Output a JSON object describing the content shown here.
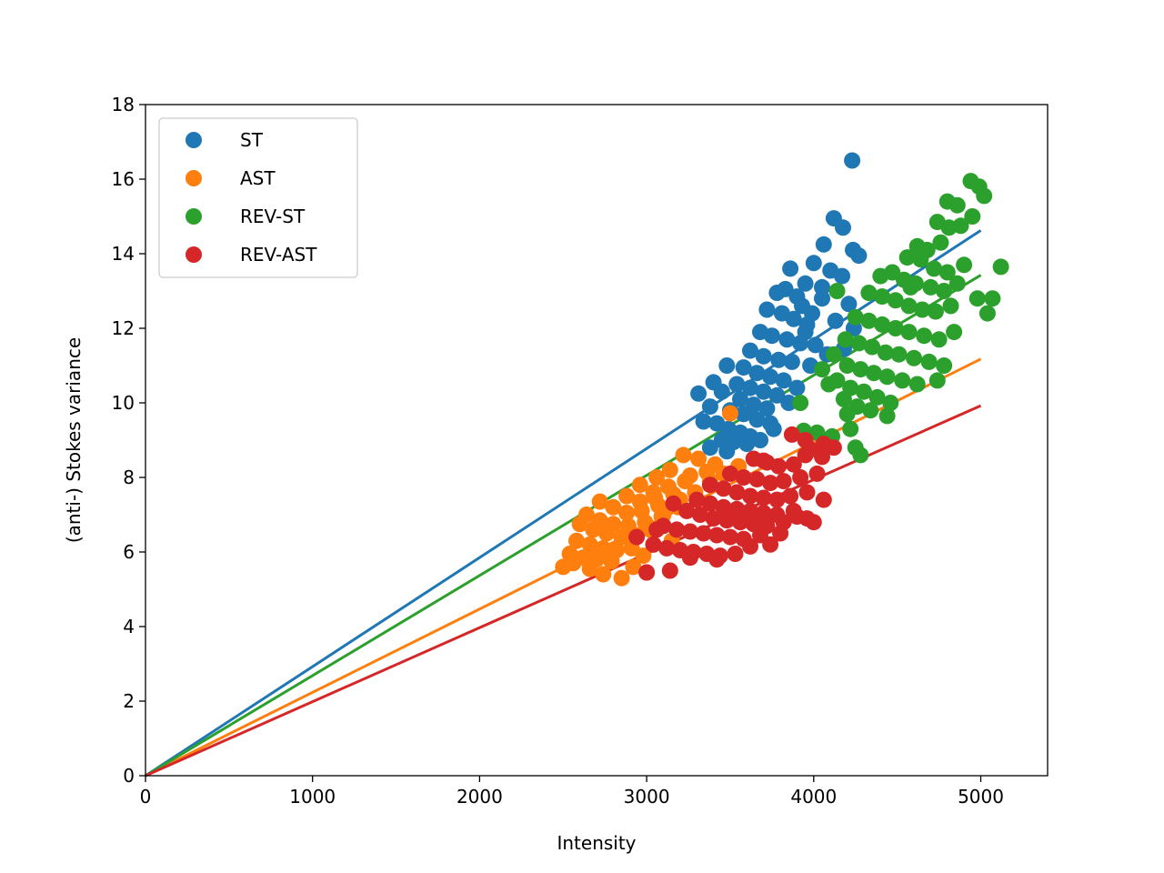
{
  "chart_data": {
    "type": "scatter",
    "title": "",
    "xlabel": "Intensity",
    "ylabel": "(anti-) Stokes variance",
    "xlim": [
      0,
      5400
    ],
    "ylim": [
      0,
      18
    ],
    "xticks": [
      0,
      1000,
      2000,
      3000,
      4000,
      5000
    ],
    "yticks": [
      0,
      2,
      4,
      6,
      8,
      10,
      12,
      14,
      16,
      18
    ],
    "grid": false,
    "legend_position": "top-left",
    "series": [
      {
        "name": "ST",
        "color": "#1f77b4",
        "fit_slope": 0.002925,
        "fit_x_range": [
          0,
          5000
        ],
        "points": [
          [
            4230,
            16.5
          ],
          [
            4120,
            14.95
          ],
          [
            4175,
            14.7
          ],
          [
            4235,
            14.1
          ],
          [
            4270,
            13.95
          ],
          [
            4060,
            14.25
          ],
          [
            3860,
            13.6
          ],
          [
            4000,
            13.75
          ],
          [
            4100,
            13.55
          ],
          [
            4170,
            13.4
          ],
          [
            3950,
            13.2
          ],
          [
            3780,
            12.95
          ],
          [
            3830,
            13.05
          ],
          [
            3900,
            12.85
          ],
          [
            4050,
            12.8
          ],
          [
            4210,
            12.65
          ],
          [
            3720,
            12.5
          ],
          [
            3810,
            12.4
          ],
          [
            3880,
            12.25
          ],
          [
            3960,
            12.1
          ],
          [
            4130,
            12.2
          ],
          [
            4240,
            12.0
          ],
          [
            3680,
            11.9
          ],
          [
            3750,
            11.8
          ],
          [
            3840,
            11.7
          ],
          [
            3920,
            11.6
          ],
          [
            4010,
            11.55
          ],
          [
            4180,
            11.45
          ],
          [
            3620,
            11.4
          ],
          [
            3700,
            11.25
          ],
          [
            3790,
            11.15
          ],
          [
            3870,
            11.1
          ],
          [
            3980,
            11.0
          ],
          [
            3580,
            10.95
          ],
          [
            3660,
            10.8
          ],
          [
            3740,
            10.7
          ],
          [
            3820,
            10.6
          ],
          [
            3480,
            11.0
          ],
          [
            3540,
            10.5
          ],
          [
            3620,
            10.4
          ],
          [
            3700,
            10.3
          ],
          [
            3780,
            10.2
          ],
          [
            3400,
            10.55
          ],
          [
            3450,
            10.3
          ],
          [
            3310,
            10.25
          ],
          [
            3560,
            10.1
          ],
          [
            3640,
            9.95
          ],
          [
            3720,
            9.85
          ],
          [
            3380,
            9.9
          ],
          [
            3500,
            9.8
          ],
          [
            3580,
            9.7
          ],
          [
            3660,
            9.55
          ],
          [
            3740,
            9.45
          ],
          [
            3340,
            9.5
          ],
          [
            3420,
            9.45
          ],
          [
            3490,
            9.3
          ],
          [
            3560,
            9.2
          ],
          [
            3620,
            9.1
          ],
          [
            3450,
            9.0
          ],
          [
            3520,
            8.95
          ],
          [
            3380,
            8.8
          ],
          [
            3600,
            8.9
          ],
          [
            3480,
            8.7
          ],
          [
            4080,
            11.3
          ],
          [
            3950,
            11.9
          ],
          [
            3850,
            10.0
          ],
          [
            3900,
            10.4
          ],
          [
            3760,
            9.3
          ],
          [
            3680,
            9.0
          ],
          [
            3930,
            12.6
          ],
          [
            4050,
            13.1
          ],
          [
            3990,
            12.4
          ]
        ]
      },
      {
        "name": "AST",
        "color": "#ff7f0e",
        "fit_slope": 0.002235,
        "fit_x_range": [
          0,
          5000
        ],
        "points": [
          [
            3500,
            9.72
          ],
          [
            3220,
            8.6
          ],
          [
            3310,
            8.5
          ],
          [
            3410,
            8.35
          ],
          [
            3140,
            8.2
          ],
          [
            3060,
            8.0
          ],
          [
            3260,
            8.05
          ],
          [
            3360,
            8.15
          ],
          [
            2960,
            7.8
          ],
          [
            3040,
            7.6
          ],
          [
            3130,
            7.75
          ],
          [
            3230,
            7.9
          ],
          [
            2880,
            7.5
          ],
          [
            2960,
            7.35
          ],
          [
            3050,
            7.45
          ],
          [
            3160,
            7.55
          ],
          [
            2720,
            7.35
          ],
          [
            2800,
            7.2
          ],
          [
            2880,
            7.05
          ],
          [
            2970,
            7.1
          ],
          [
            3070,
            7.25
          ],
          [
            2640,
            7.0
          ],
          [
            2720,
            6.85
          ],
          [
            2800,
            6.75
          ],
          [
            2890,
            6.7
          ],
          [
            2990,
            6.8
          ],
          [
            3090,
            6.95
          ],
          [
            2600,
            6.75
          ],
          [
            2680,
            6.6
          ],
          [
            2760,
            6.5
          ],
          [
            2850,
            6.4
          ],
          [
            2940,
            6.45
          ],
          [
            3020,
            6.6
          ],
          [
            2580,
            6.3
          ],
          [
            2660,
            6.2
          ],
          [
            2740,
            6.1
          ],
          [
            2820,
            6.05
          ],
          [
            2910,
            6.1
          ],
          [
            2540,
            5.95
          ],
          [
            2620,
            5.85
          ],
          [
            2700,
            5.8
          ],
          [
            2790,
            5.75
          ],
          [
            2500,
            5.6
          ],
          [
            2560,
            5.7
          ],
          [
            2740,
            5.4
          ],
          [
            2850,
            5.3
          ],
          [
            3000,
            5.45
          ],
          [
            2920,
            5.6
          ],
          [
            3100,
            7.0
          ],
          [
            3190,
            7.2
          ],
          [
            3290,
            7.6
          ],
          [
            3380,
            7.9
          ],
          [
            3460,
            8.1
          ],
          [
            3550,
            8.3
          ],
          [
            3150,
            6.3
          ],
          [
            3040,
            6.2
          ],
          [
            2660,
            5.55
          ],
          [
            2780,
            5.95
          ],
          [
            2980,
            5.9
          ],
          [
            3200,
            7.4
          ]
        ]
      },
      {
        "name": "REV-ST",
        "color": "#2ca02c",
        "fit_slope": 0.002685,
        "fit_x_range": [
          0,
          5000
        ],
        "points": [
          [
            4940,
            15.95
          ],
          [
            4990,
            15.8
          ],
          [
            5020,
            15.55
          ],
          [
            4800,
            15.4
          ],
          [
            4860,
            15.3
          ],
          [
            4950,
            15.0
          ],
          [
            4740,
            14.85
          ],
          [
            4810,
            14.7
          ],
          [
            4880,
            14.75
          ],
          [
            4620,
            14.2
          ],
          [
            4680,
            14.1
          ],
          [
            4760,
            14.3
          ],
          [
            4560,
            13.9
          ],
          [
            4640,
            13.85
          ],
          [
            4720,
            13.6
          ],
          [
            4800,
            13.5
          ],
          [
            4900,
            13.7
          ],
          [
            5120,
            13.65
          ],
          [
            4400,
            13.4
          ],
          [
            4470,
            13.5
          ],
          [
            4540,
            13.3
          ],
          [
            4610,
            13.2
          ],
          [
            4700,
            13.1
          ],
          [
            4780,
            13.0
          ],
          [
            4330,
            12.95
          ],
          [
            4410,
            12.85
          ],
          [
            4490,
            12.75
          ],
          [
            4570,
            12.6
          ],
          [
            4650,
            12.5
          ],
          [
            4730,
            12.45
          ],
          [
            4820,
            12.6
          ],
          [
            4980,
            12.8
          ],
          [
            5070,
            12.8
          ],
          [
            4250,
            12.3
          ],
          [
            4330,
            12.2
          ],
          [
            4410,
            12.1
          ],
          [
            4490,
            12.0
          ],
          [
            4570,
            11.9
          ],
          [
            4660,
            11.8
          ],
          [
            4750,
            11.7
          ],
          [
            4840,
            11.9
          ],
          [
            5040,
            12.4
          ],
          [
            4190,
            11.7
          ],
          [
            4270,
            11.6
          ],
          [
            4350,
            11.5
          ],
          [
            4430,
            11.35
          ],
          [
            4510,
            11.3
          ],
          [
            4600,
            11.2
          ],
          [
            4690,
            11.1
          ],
          [
            4780,
            11.0
          ],
          [
            4120,
            11.3
          ],
          [
            4200,
            11.0
          ],
          [
            4280,
            10.9
          ],
          [
            4360,
            10.8
          ],
          [
            4440,
            10.7
          ],
          [
            4530,
            10.6
          ],
          [
            4620,
            10.5
          ],
          [
            4740,
            10.6
          ],
          [
            4050,
            10.9
          ],
          [
            4140,
            10.6
          ],
          [
            4220,
            10.4
          ],
          [
            4300,
            10.3
          ],
          [
            4380,
            10.15
          ],
          [
            4460,
            10.0
          ],
          [
            4090,
            10.5
          ],
          [
            4180,
            10.1
          ],
          [
            4260,
            9.9
          ],
          [
            4340,
            9.8
          ],
          [
            3920,
            10.0
          ],
          [
            4200,
            9.7
          ],
          [
            4440,
            9.65
          ],
          [
            3940,
            9.25
          ],
          [
            4020,
            9.2
          ],
          [
            4110,
            9.1
          ],
          [
            4220,
            9.3
          ],
          [
            4250,
            8.8
          ],
          [
            4280,
            8.6
          ],
          [
            4140,
            13.0
          ],
          [
            4580,
            13.1
          ],
          [
            4860,
            13.2
          ]
        ]
      },
      {
        "name": "REV-AST",
        "color": "#d62728",
        "fit_slope": 0.001985,
        "fit_x_range": [
          0,
          5000
        ],
        "points": [
          [
            3870,
            9.15
          ],
          [
            3950,
            9.0
          ],
          [
            4060,
            8.9
          ],
          [
            4120,
            8.8
          ],
          [
            3980,
            8.75
          ],
          [
            3640,
            8.5
          ],
          [
            3720,
            8.4
          ],
          [
            3790,
            8.3
          ],
          [
            3880,
            8.35
          ],
          [
            4050,
            8.55
          ],
          [
            3500,
            8.1
          ],
          [
            3580,
            8.0
          ],
          [
            3660,
            7.95
          ],
          [
            3740,
            7.85
          ],
          [
            3820,
            7.9
          ],
          [
            3920,
            8.0
          ],
          [
            4020,
            8.1
          ],
          [
            3380,
            7.8
          ],
          [
            3460,
            7.7
          ],
          [
            3540,
            7.6
          ],
          [
            3620,
            7.5
          ],
          [
            3700,
            7.45
          ],
          [
            3780,
            7.4
          ],
          [
            3860,
            7.5
          ],
          [
            3960,
            7.6
          ],
          [
            4060,
            7.4
          ],
          [
            3300,
            7.4
          ],
          [
            3380,
            7.3
          ],
          [
            3460,
            7.2
          ],
          [
            3540,
            7.15
          ],
          [
            3620,
            7.1
          ],
          [
            3700,
            7.05
          ],
          [
            3780,
            7.0
          ],
          [
            3880,
            7.1
          ],
          [
            3160,
            7.3
          ],
          [
            3240,
            7.1
          ],
          [
            3320,
            7.0
          ],
          [
            3400,
            6.9
          ],
          [
            3480,
            6.85
          ],
          [
            3560,
            6.8
          ],
          [
            3640,
            6.75
          ],
          [
            3720,
            6.7
          ],
          [
            3820,
            6.8
          ],
          [
            3960,
            6.9
          ],
          [
            3100,
            6.7
          ],
          [
            3180,
            6.6
          ],
          [
            3260,
            6.55
          ],
          [
            3340,
            6.5
          ],
          [
            3420,
            6.45
          ],
          [
            3500,
            6.4
          ],
          [
            3580,
            6.35
          ],
          [
            3680,
            6.45
          ],
          [
            3800,
            6.5
          ],
          [
            4000,
            6.8
          ],
          [
            2940,
            6.4
          ],
          [
            3040,
            6.2
          ],
          [
            3120,
            6.1
          ],
          [
            3200,
            6.05
          ],
          [
            3280,
            6.0
          ],
          [
            3360,
            5.95
          ],
          [
            3440,
            5.9
          ],
          [
            3530,
            5.95
          ],
          [
            3620,
            6.15
          ],
          [
            3740,
            6.2
          ],
          [
            3060,
            6.6
          ],
          [
            3140,
            5.5
          ],
          [
            3000,
            5.45
          ],
          [
            3260,
            5.85
          ],
          [
            3420,
            5.8
          ],
          [
            3900,
            6.95
          ],
          [
            3700,
            8.45
          ],
          [
            3950,
            8.6
          ]
        ]
      }
    ]
  }
}
